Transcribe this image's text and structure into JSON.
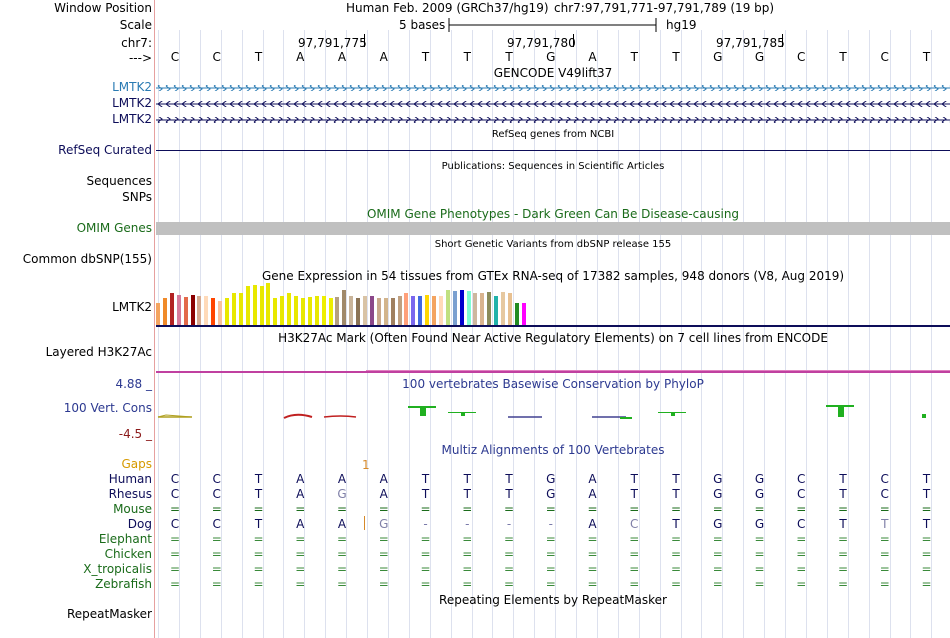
{
  "header": {
    "window_position_label": "Window Position",
    "scale_label": "Scale",
    "chr_label": "chr7:",
    "strand_label": "--->",
    "assembly": "Human Feb. 2009 (GRCh37/hg19)",
    "position": "chr7:97,791,771-97,791,789 (19 bp)",
    "scale_text": "5 bases",
    "scale_db": "hg19",
    "ticks": [
      "97,791,775",
      "97,791,780",
      "97,791,785"
    ],
    "sequence": [
      "C",
      "C",
      "T",
      "A",
      "A",
      "A",
      "T",
      "T",
      "T",
      "G",
      "A",
      "T",
      "T",
      "G",
      "G",
      "C",
      "T",
      "C",
      "T"
    ]
  },
  "gencode": {
    "title": "GENCODE V49lift37",
    "genes": [
      {
        "label": "LMTK2",
        "color": "#2a7bb3"
      },
      {
        "label": "LMTK2",
        "color": "#0d0d59"
      },
      {
        "label": "LMTK2",
        "color": "#0d0d59"
      }
    ]
  },
  "refseq": {
    "title": "RefSeq genes from NCBI",
    "label": "RefSeq Curated"
  },
  "publications": {
    "title": "Publications: Sequences in Scientific Articles",
    "label1": "Sequences",
    "label2": "SNPs"
  },
  "omim": {
    "title": "OMIM Gene Phenotypes - Dark Green Can Be Disease-causing",
    "label": "OMIM Genes"
  },
  "dbsnp": {
    "title": "Short Genetic Variants from dbSNP release 155",
    "label": "Common dbSNP(155)"
  },
  "gtex": {
    "title": "Gene Expression in 54 tissues from GTEx RNA-seq of 17382 samples, 948 donors (V8, Aug 2019)",
    "label": "LMTK2",
    "expression": [
      0.45,
      0.55,
      0.65,
      0.62,
      0.58,
      0.62,
      0.6,
      0.6,
      0.55,
      0.48,
      0.55,
      0.65,
      0.65,
      0.8,
      0.82,
      0.8,
      0.85,
      0.55,
      0.6,
      0.65,
      0.6,
      0.55,
      0.58,
      0.6,
      0.6,
      0.55,
      0.58,
      0.72,
      0.6,
      0.55,
      0.6,
      0.6,
      0.55,
      0.55,
      0.55,
      0.6,
      0.65,
      0.6,
      0.6,
      0.62,
      0.6,
      0.6,
      0.72,
      0.7,
      0.72,
      0.7,
      0.65,
      0.65,
      0.68,
      0.6,
      0.68,
      0.65,
      0.45,
      0.45
    ],
    "colors": [
      "#f4a460",
      "#f08a2a",
      "#b22222",
      "#d77a9a",
      "#e36a4a",
      "#8b0000",
      "#d6a98f",
      "#ffdab9",
      "#ff4500",
      "#f9c29d",
      "#e8e800",
      "#e8e800",
      "#e8e800",
      "#e8e800",
      "#e8e800",
      "#e8e800",
      "#e8e800",
      "#e8e800",
      "#e8e800",
      "#e8e800",
      "#e8e800",
      "#e8e800",
      "#e8e800",
      "#e8e800",
      "#eeee00",
      "#eeee00",
      "#b5a081",
      "#a0896a",
      "#c9b49a",
      "#8b7355",
      "#d9c3a5",
      "#8b4789",
      "#c9a88a",
      "#d2b48c",
      "#a08060",
      "#c0a080",
      "#ffa07a",
      "#7a67ee",
      "#4169e1",
      "#ffd700",
      "#f4a460",
      "#ffdab9",
      "#c0e080",
      "#7ba0d0",
      "#0000cd",
      "#7fffd4",
      "#cdb79e",
      "#d9b48f",
      "#8b8b5a",
      "#20b2aa",
      "#e6c8a0",
      "#e8c090",
      "#228b22",
      "#ff00ff"
    ]
  },
  "h3k27ac": {
    "title": "H3K27Ac Mark (Often Found Near Active Regulatory Elements) on 7 cell lines from ENCODE",
    "label": "Layered H3K27Ac"
  },
  "conservation": {
    "title": "100 vertebrates Basewise Conservation by PhyloP",
    "label": "100 Vert. Cons",
    "max": "4.88 _",
    "min": "-4.5 _"
  },
  "multiz": {
    "title": "Multiz Alignments of 100 Vertebrates",
    "gaps_label": "Gaps",
    "gap_count": "1",
    "species": [
      {
        "name": "Human",
        "row": [
          "C",
          "C",
          "T",
          "A",
          "A",
          "A",
          "T",
          "T",
          "T",
          "G",
          "A",
          "T",
          "T",
          "G",
          "G",
          "C",
          "T",
          "C",
          "T"
        ]
      },
      {
        "name": "Rhesus",
        "row": [
          "C",
          "C",
          "T",
          "A",
          "G",
          "A",
          "T",
          "T",
          "T",
          "G",
          "A",
          "T",
          "T",
          "G",
          "G",
          "C",
          "T",
          "C",
          "T"
        ]
      },
      {
        "name": "Mouse",
        "row": [
          "=",
          "=",
          "=",
          "=",
          "=",
          "=",
          "=",
          "=",
          "=",
          "=",
          "=",
          "=",
          "=",
          "=",
          "=",
          "=",
          "=",
          "=",
          "="
        ]
      },
      {
        "name": "Dog",
        "row": [
          "C",
          "C",
          "T",
          "A",
          "A",
          "G",
          "-",
          "-",
          "-",
          "-",
          "A",
          "C",
          "T",
          "G",
          "G",
          "C",
          "T",
          "T",
          "T"
        ]
      },
      {
        "name": "Elephant",
        "row": [
          "=",
          "=",
          "=",
          "=",
          "=",
          "=",
          "=",
          "=",
          "=",
          "=",
          "=",
          "=",
          "=",
          "=",
          "=",
          "=",
          "=",
          "=",
          "="
        ]
      },
      {
        "name": "Chicken",
        "row": [
          "=",
          "=",
          "=",
          "=",
          "=",
          "=",
          "=",
          "=",
          "=",
          "=",
          "=",
          "=",
          "=",
          "=",
          "=",
          "=",
          "=",
          "=",
          "="
        ]
      },
      {
        "name": "X_tropicalis",
        "row": [
          "=",
          "=",
          "=",
          "=",
          "=",
          "=",
          "=",
          "=",
          "=",
          "=",
          "=",
          "=",
          "=",
          "=",
          "=",
          "=",
          "=",
          "=",
          "="
        ]
      },
      {
        "name": "Zebrafish",
        "row": [
          "=",
          "=",
          "=",
          "=",
          "=",
          "=",
          "=",
          "=",
          "=",
          "=",
          "=",
          "=",
          "=",
          "=",
          "=",
          "=",
          "=",
          "=",
          "="
        ]
      }
    ]
  },
  "repeatmasker": {
    "title": "Repeating Elements by RepeatMasker",
    "label": "RepeatMasker"
  }
}
